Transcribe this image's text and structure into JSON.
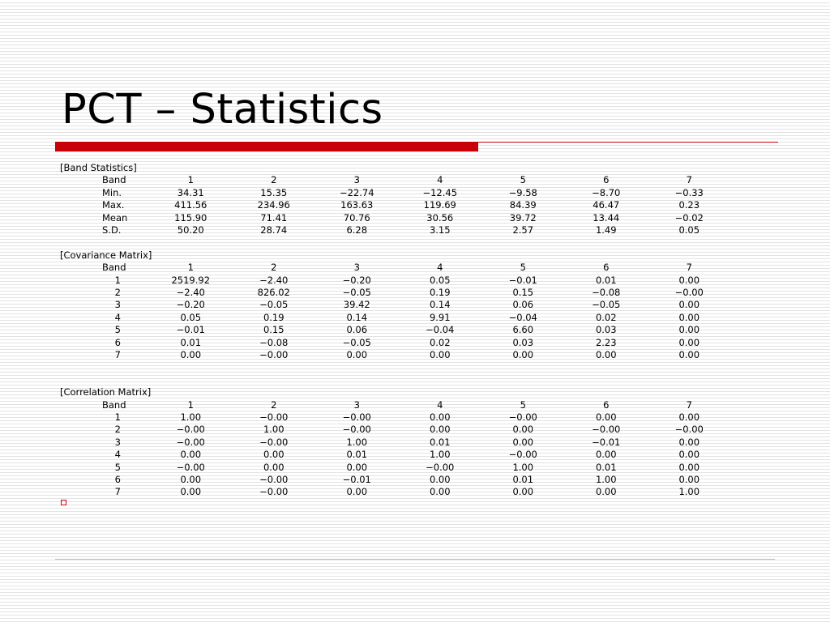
{
  "title": "PCT – Statistics",
  "band_statistics": {
    "heading": "[Band Statistics]",
    "header_label": "Band",
    "columns": [
      "1",
      "2",
      "3",
      "4",
      "5",
      "6",
      "7"
    ],
    "rows": [
      {
        "label": "Min.",
        "values": [
          "34.31",
          "15.35",
          "−22.74",
          "−12.45",
          "−9.58",
          "−8.70",
          "−0.33"
        ]
      },
      {
        "label": "Max.",
        "values": [
          "411.56",
          "234.96",
          "163.63",
          "119.69",
          "84.39",
          "46.47",
          "0.23"
        ]
      },
      {
        "label": "Mean",
        "values": [
          "115.90",
          "71.41",
          "70.76",
          "30.56",
          "39.72",
          "13.44",
          "−0.02"
        ]
      },
      {
        "label": "S.D.",
        "values": [
          "50.20",
          "28.74",
          "6.28",
          "3.15",
          "2.57",
          "1.49",
          "0.05"
        ]
      }
    ]
  },
  "covariance_matrix": {
    "heading": "[Covariance Matrix]",
    "header_label": "Band",
    "columns": [
      "1",
      "2",
      "3",
      "4",
      "5",
      "6",
      "7"
    ],
    "rows": [
      {
        "label": "1",
        "values": [
          "2519.92",
          "−2.40",
          "−0.20",
          "0.05",
          "−0.01",
          "0.01",
          "0.00"
        ]
      },
      {
        "label": "2",
        "values": [
          "−2.40",
          "826.02",
          "−0.05",
          "0.19",
          "0.15",
          "−0.08",
          "−0.00"
        ]
      },
      {
        "label": "3",
        "values": [
          "−0.20",
          "−0.05",
          "39.42",
          "0.14",
          "0.06",
          "−0.05",
          "0.00"
        ]
      },
      {
        "label": "4",
        "values": [
          "0.05",
          "0.19",
          "0.14",
          "9.91",
          "−0.04",
          "0.02",
          "0.00"
        ]
      },
      {
        "label": "5",
        "values": [
          "−0.01",
          "0.15",
          "0.06",
          "−0.04",
          "6.60",
          "0.03",
          "0.00"
        ]
      },
      {
        "label": "6",
        "values": [
          "0.01",
          "−0.08",
          "−0.05",
          "0.02",
          "0.03",
          "2.23",
          "0.00"
        ]
      },
      {
        "label": "7",
        "values": [
          "0.00",
          "−0.00",
          "0.00",
          "0.00",
          "0.00",
          "0.00",
          "0.00"
        ]
      }
    ]
  },
  "correlation_matrix": {
    "heading": "[Correlation Matrix]",
    "header_label": "Band",
    "columns": [
      "1",
      "2",
      "3",
      "4",
      "5",
      "6",
      "7"
    ],
    "rows": [
      {
        "label": "1",
        "values": [
          "1.00",
          "−0.00",
          "−0.00",
          "0.00",
          "−0.00",
          "0.00",
          "0.00"
        ]
      },
      {
        "label": "2",
        "values": [
          "−0.00",
          "1.00",
          "−0.00",
          "0.00",
          "0.00",
          "−0.00",
          "−0.00"
        ]
      },
      {
        "label": "3",
        "values": [
          "−0.00",
          "−0.00",
          "1.00",
          "0.01",
          "0.00",
          "−0.01",
          "0.00"
        ]
      },
      {
        "label": "4",
        "values": [
          "0.00",
          "0.00",
          "0.01",
          "1.00",
          "−0.00",
          "0.00",
          "0.00"
        ]
      },
      {
        "label": "5",
        "values": [
          "−0.00",
          "0.00",
          "0.00",
          "−0.00",
          "1.00",
          "0.01",
          "0.00"
        ]
      },
      {
        "label": "6",
        "values": [
          "0.00",
          "−0.00",
          "−0.01",
          "0.00",
          "0.01",
          "1.00",
          "0.00"
        ]
      },
      {
        "label": "7",
        "values": [
          "0.00",
          "−0.00",
          "0.00",
          "0.00",
          "0.00",
          "0.00",
          "1.00"
        ]
      }
    ]
  },
  "colors": {
    "accent": "#c8000a",
    "stripe": "#e3e3e3",
    "background": "#ffffff"
  },
  "icons": {
    "bullet": "bullet-square-icon"
  }
}
